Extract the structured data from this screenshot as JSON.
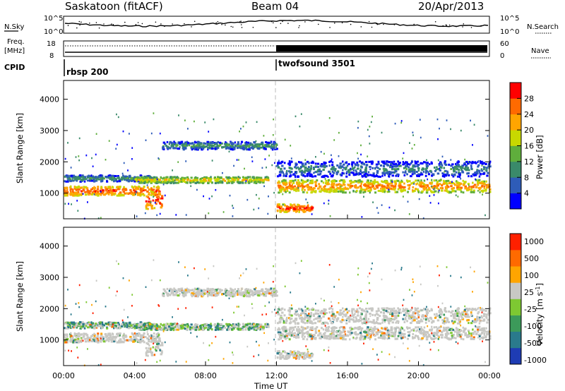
{
  "header": {
    "station": "Saskatoon (fitACF)",
    "beam": "Beam 04",
    "date": "20/Apr/2013"
  },
  "noise_panel": {
    "left_label": "N.Sky",
    "right_label": "N.Search",
    "left_ticks": [
      "10^5",
      "10^0"
    ],
    "right_ticks": [
      "10^5",
      "10^0"
    ]
  },
  "freq_panel": {
    "left_label_1": "Freq.",
    "left_label_2": "[MHz]",
    "left_ticks": [
      "18",
      "8"
    ],
    "right_label": "Nave",
    "right_ticks": [
      "60",
      "0"
    ]
  },
  "cpid_panel": {
    "label": "CPID",
    "modes": [
      {
        "name": "rbsp 200",
        "start_hour": 0
      },
      {
        "name": "twofsound 3501",
        "start_hour": 12
      }
    ]
  },
  "range_axis": {
    "label": "Slant Range [km]",
    "ticks": [
      "1000",
      "2000",
      "3000",
      "4000"
    ]
  },
  "time_axis": {
    "label": "Time UT",
    "ticks": [
      "00:00",
      "04:00",
      "08:00",
      "12:00",
      "16:00",
      "20:00",
      "00:00"
    ]
  },
  "power_colorbar": {
    "label": "Power [dB]",
    "ticks": [
      "4",
      "8",
      "12",
      "16",
      "20",
      "24",
      "28"
    ],
    "colors": [
      "#0000ff",
      "#2e5cb8",
      "#3a8a6a",
      "#5fae3c",
      "#c8d800",
      "#ffa500",
      "#ff6a00",
      "#ff0000"
    ]
  },
  "velocity_colorbar": {
    "label_main": "Velocity",
    "label_unit": "[m s",
    "label_sup": "-1",
    "label_close": "]",
    "ticks": [
      "1000",
      "500",
      "100",
      "25",
      "-25",
      "-100",
      "-500",
      "-1000"
    ],
    "colors": [
      "#1e3cb4",
      "#2a7a8c",
      "#3c9a5a",
      "#7ec832",
      "#c8c8c4",
      "#ffa500",
      "#ff6a00",
      "#ff2000"
    ]
  },
  "chart_data": {
    "type": "heatmap",
    "title": "Saskatoon (fitACF) Beam 04 20/Apr/2013",
    "xlabel": "Time UT",
    "ylabel": "Slant Range [km]",
    "x_range_hours": [
      0,
      24
    ],
    "y_range_km": [
      180,
      4600
    ],
    "panels": [
      {
        "name": "Power",
        "unit": "dB",
        "scale": [
          0,
          30
        ]
      },
      {
        "name": "Velocity",
        "unit": "m s^-1",
        "scale": [
          -1000,
          1000
        ]
      }
    ],
    "scatter_bands": [
      {
        "start_hour": 0.0,
        "end_hour": 5.4,
        "center_km": 1100,
        "width_km": 300,
        "power_db": 27
      },
      {
        "start_hour": 0.0,
        "end_hour": 5.0,
        "center_km": 1500,
        "width_km": 200,
        "power_db": 12
      },
      {
        "start_hour": 4.6,
        "end_hour": 5.5,
        "center_km": 800,
        "width_km": 600,
        "power_db": 28
      },
      {
        "start_hour": 4.0,
        "end_hour": 11.5,
        "center_km": 1450,
        "width_km": 200,
        "power_db": 20
      },
      {
        "start_hour": 5.5,
        "end_hour": 12.0,
        "center_km": 2550,
        "width_km": 250,
        "power_db": 12
      },
      {
        "start_hour": 12.0,
        "end_hour": 14.0,
        "center_km": 550,
        "width_km": 250,
        "power_db": 28
      },
      {
        "start_hour": 12.0,
        "end_hour": 24.0,
        "center_km": 1250,
        "width_km": 400,
        "power_db": 24
      },
      {
        "start_hour": 12.0,
        "end_hour": 24.0,
        "center_km": 1800,
        "width_km": 500,
        "power_db": 10
      }
    ],
    "cpid_change_hour": 12
  }
}
